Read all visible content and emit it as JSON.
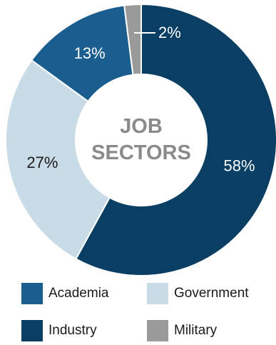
{
  "chart_data": {
    "type": "pie",
    "title": "",
    "center_label": [
      "JOB",
      "SECTORS"
    ],
    "categories": [
      "Industry",
      "Government",
      "Academia",
      "Military"
    ],
    "values": [
      58,
      27,
      13,
      2
    ],
    "value_labels": [
      "58%",
      "27%",
      "13%",
      "2%"
    ],
    "colors": [
      "#0a3e63",
      "#c9dbe6",
      "#1a5d8f",
      "#9a9a9a"
    ],
    "label_colors": [
      "#ffffff",
      "#1a1a1a",
      "#ffffff",
      "#ffffff"
    ],
    "legend": {
      "placement": "bottom",
      "items": [
        {
          "name": "Academia",
          "color": "#1a5d8f"
        },
        {
          "name": "Government",
          "color": "#c9dbe6"
        },
        {
          "name": "Industry",
          "color": "#0a3e63"
        },
        {
          "name": "Military",
          "color": "#9a9a9a"
        }
      ]
    }
  }
}
